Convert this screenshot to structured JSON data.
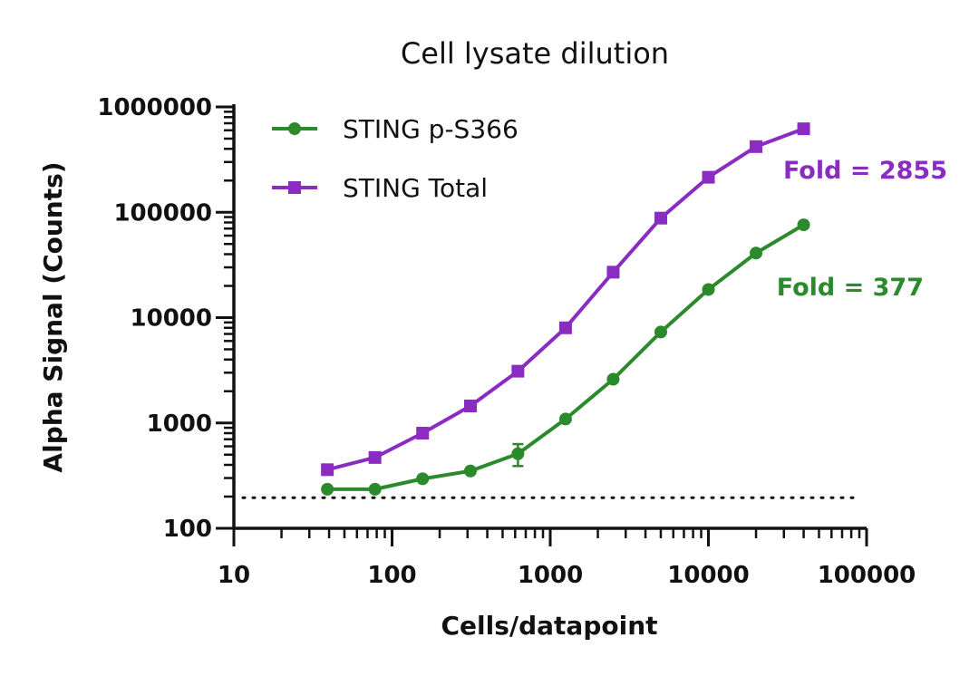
{
  "chart_data": {
    "type": "line",
    "title": "Cell lysate dilution",
    "xlabel": "Cells/datapoint",
    "ylabel": "Alpha Signal (Counts)",
    "xscale": "log",
    "yscale": "log",
    "xlim": [
      10,
      100000
    ],
    "ylim": [
      100,
      1000000
    ],
    "x_ticks": [
      "10",
      "100",
      "1000",
      "10000",
      "100000"
    ],
    "y_ticks": [
      "100",
      "1000",
      "10000",
      "100000",
      "1000000"
    ],
    "grid": false,
    "legend": "top-left",
    "baseline": {
      "y": 195,
      "style": "dotted"
    },
    "series": [
      {
        "name": "STING p-S366",
        "color": "#2b8a2b",
        "marker": "circle",
        "x": [
          39,
          78,
          156,
          313,
          625,
          1250,
          2500,
          5000,
          10000,
          20000,
          40000
        ],
        "y": [
          235,
          235,
          295,
          350,
          510,
          1090,
          2600,
          7300,
          18500,
          41000,
          76000
        ],
        "y_error": [
          10,
          10,
          12,
          15,
          120,
          60,
          120,
          300,
          800,
          1500,
          3000
        ]
      },
      {
        "name": "STING Total",
        "color": "#8a2bc2",
        "marker": "square",
        "x": [
          39,
          78,
          156,
          313,
          625,
          1250,
          2500,
          5000,
          10000,
          20000,
          40000
        ],
        "y": [
          360,
          470,
          800,
          1450,
          3100,
          8000,
          27000,
          88000,
          215000,
          420000,
          620000
        ],
        "y_error": [
          15,
          20,
          40,
          60,
          150,
          300,
          900,
          3000,
          6000,
          12000,
          20000
        ]
      }
    ],
    "annotations": [
      {
        "text": "Fold = 2855",
        "color": "#8a2bc2"
      },
      {
        "text": "Fold = 377",
        "color": "#2b8a2b"
      }
    ]
  }
}
